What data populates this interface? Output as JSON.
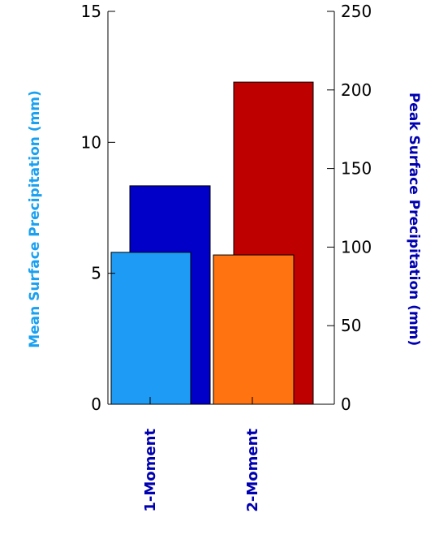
{
  "chart_data": {
    "type": "bar",
    "categories": [
      "1-Moment",
      "2-Moment"
    ],
    "left_axis": {
      "label": "Mean Surface Precipitation (mm)",
      "ylim": [
        0,
        15
      ],
      "ticks": [
        "0",
        "5",
        "10",
        "15"
      ],
      "color": "#1aa0f0"
    },
    "right_axis": {
      "label": "Peak Surface Precipitation (mm)",
      "ylim": [
        0,
        250
      ],
      "ticks": [
        "0",
        "50",
        "100",
        "150",
        "200",
        "250"
      ],
      "color": "#0000b0"
    },
    "series": [
      {
        "axis": "left",
        "values": [
          5.8,
          5.7
        ],
        "colors": [
          "#1e9cf5",
          "#ff7310"
        ]
      },
      {
        "axis": "right",
        "values": [
          139,
          205
        ],
        "colors": [
          "#0000c8",
          "#be0000"
        ]
      }
    ],
    "category_label_color": "#0000b0",
    "grid": false
  }
}
